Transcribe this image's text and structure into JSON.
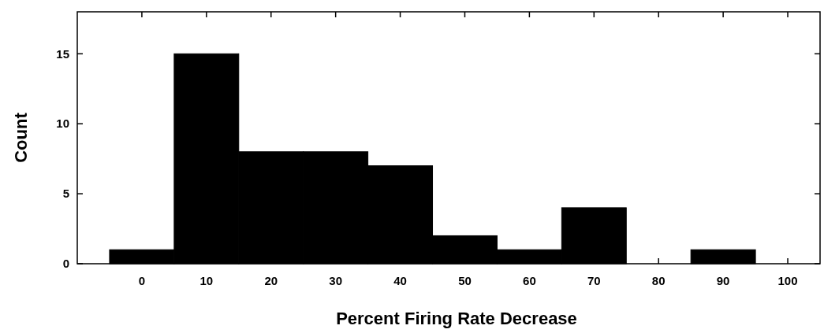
{
  "chart_data": {
    "type": "histogram",
    "xlabel": "Percent Firing Rate Decrease",
    "ylabel": "Count",
    "bins": [
      -5,
      5,
      15,
      25,
      35,
      45,
      55,
      65,
      75,
      85,
      95
    ],
    "values": [
      1,
      15,
      8,
      8,
      7,
      2,
      1,
      4,
      0,
      1
    ],
    "color": "#000000",
    "xlim": [
      -10,
      105
    ],
    "ylim": [
      0,
      18
    ],
    "xticks": [
      0,
      10,
      20,
      30,
      40,
      50,
      60,
      70,
      80,
      90,
      100
    ],
    "yticks": [
      0,
      5,
      10,
      15
    ],
    "grid": false
  }
}
